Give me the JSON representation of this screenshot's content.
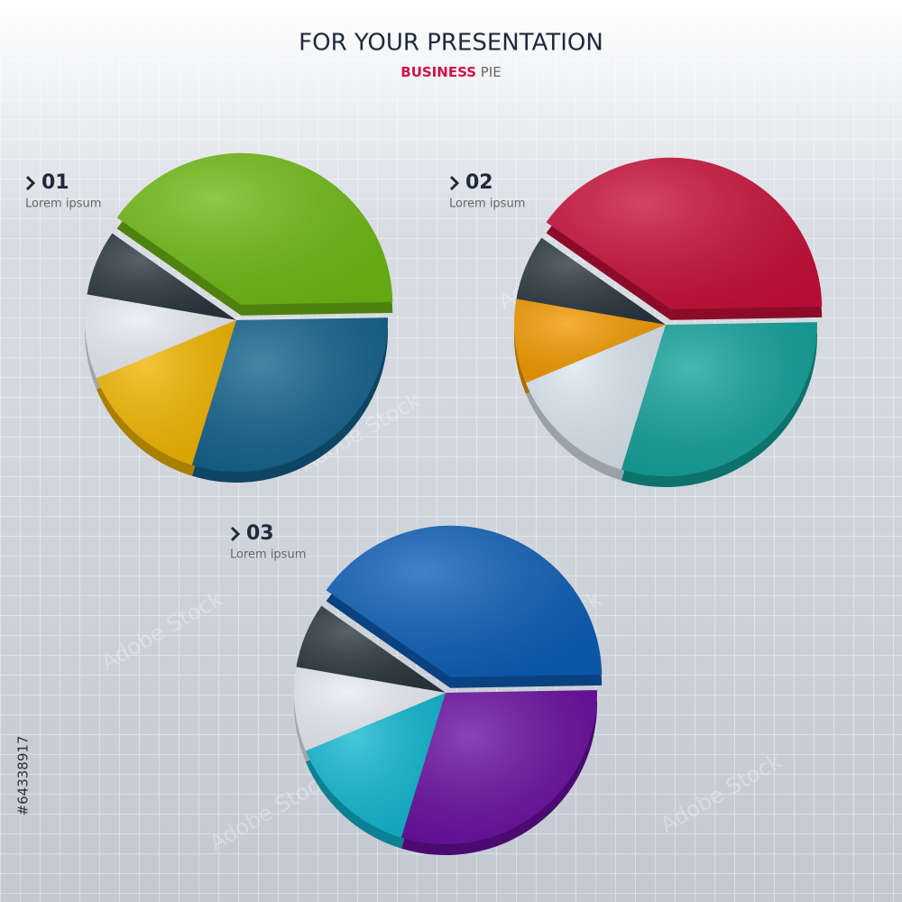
{
  "header": {
    "title": "FOR YOUR PRESENTATION",
    "subtitle_bold": "BUSINESS",
    "subtitle": "PIE"
  },
  "chart_data": [
    {
      "type": "pie",
      "label": "01",
      "sublabel": "Lorem ipsum",
      "values": [
        40,
        30,
        14,
        9,
        7
      ],
      "colors": [
        "#6fba14",
        "#14638d",
        "#f2b600",
        "#e9edf2",
        "#2a3640"
      ]
    },
    {
      "type": "pie",
      "label": "02",
      "sublabel": "Lorem ipsum",
      "values": [
        40,
        30,
        14,
        9,
        7
      ],
      "colors": [
        "#c8103a",
        "#13a39b",
        "#dce6f0",
        "#f29a00",
        "#2a3640"
      ]
    },
    {
      "type": "pie",
      "label": "03",
      "sublabel": "Lorem ipsum",
      "values": [
        40,
        30,
        14,
        9,
        7
      ],
      "colors": [
        "#0d5fb8",
        "#6a0fa0",
        "#12b8d2",
        "#e9edf2",
        "#2a3640"
      ]
    }
  ],
  "watermark": "Adobe Stock",
  "stock_id": "#64338917"
}
